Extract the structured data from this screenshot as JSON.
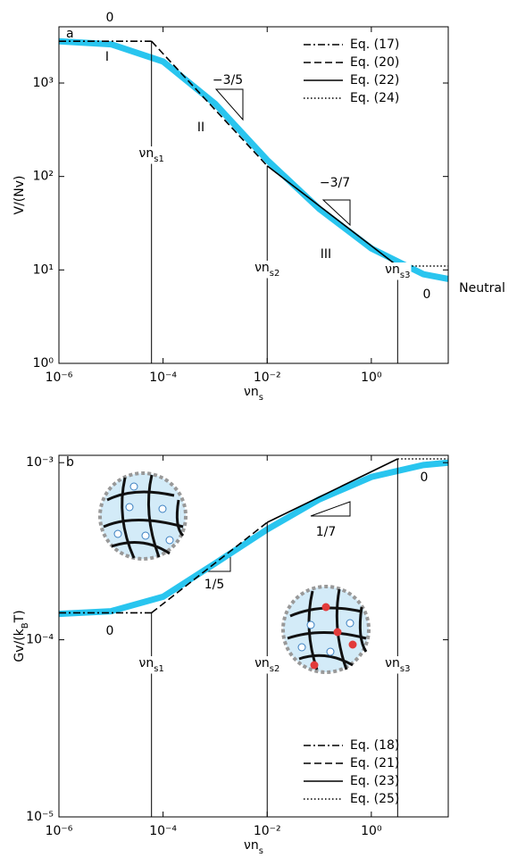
{
  "chart_data": [
    {
      "type": "line",
      "label": "a",
      "xscale": "log",
      "yscale": "log",
      "xlabel": [
        "νn",
        {
          "sub": "s"
        }
      ],
      "ylabel": [
        "V/(Nv)"
      ],
      "xlim": [
        1e-06,
        30
      ],
      "ylim": [
        1,
        4000
      ],
      "xticks": [
        {
          "value": 1e-06,
          "label": "10⁻⁶"
        },
        {
          "value": 0.0001,
          "label": "10⁻⁴"
        },
        {
          "value": 0.01,
          "label": "10⁻²"
        },
        {
          "value": 1,
          "label": "10⁰"
        }
      ],
      "yticks": [
        {
          "value": 1,
          "label": "10⁰"
        },
        {
          "value": 10,
          "label": "10¹"
        },
        {
          "value": 100,
          "label": "10²"
        },
        {
          "value": 1000,
          "label": "10³"
        }
      ],
      "legend": "upper right",
      "series": [
        {
          "color": "#29c5ef",
          "linewidth": 7,
          "linestyle": "solid",
          "x": [
            1e-06,
            1e-05,
            0.0001,
            0.001,
            0.01,
            0.1,
            1,
            10,
            30
          ],
          "values": [
            2800,
            2600,
            1700,
            600,
            150,
            45,
            17,
            9,
            8
          ]
        },
        {
          "name": "Eq. (17)",
          "color": "#000000",
          "linewidth": 1.6,
          "linestyle": "dashdot",
          "x": [
            1e-06,
            6e-05
          ],
          "values": [
            2800,
            2800
          ]
        },
        {
          "name": "Eq. (20)",
          "color": "#000000",
          "linewidth": 1.6,
          "linestyle": "dash",
          "x": [
            6e-05,
            0.01
          ],
          "values": [
            2800,
            130
          ]
        },
        {
          "name": "Eq. (22)",
          "color": "#000000",
          "linewidth": 1.6,
          "linestyle": "solid",
          "x": [
            0.01,
            3.2
          ],
          "values": [
            130,
            11
          ]
        },
        {
          "name": "Eq. (24)",
          "color": "#000000",
          "linewidth": 1.6,
          "linestyle": "dot",
          "x": [
            3.2,
            30
          ],
          "values": [
            11,
            11
          ]
        }
      ],
      "vlines": [
        {
          "x": 6e-05,
          "label": [
            "νn",
            {
              "sub": "s1"
            }
          ]
        },
        {
          "x": 0.01,
          "label": [
            "νn",
            {
              "sub": "s2"
            }
          ]
        },
        {
          "x": 3.2,
          "label": [
            "νn",
            {
              "sub": "s3"
            }
          ]
        }
      ],
      "annotations": [
        "0",
        "I",
        "II",
        "−3/5",
        "III",
        "−3/7",
        "0",
        "Neutral"
      ]
    },
    {
      "type": "line",
      "label": "b",
      "xscale": "log",
      "yscale": "log",
      "xlabel": [
        "νn",
        {
          "sub": "s"
        }
      ],
      "ylabel": [
        "Gv/(k",
        {
          "sub": "B"
        },
        "T)"
      ],
      "xlim": [
        1e-06,
        30
      ],
      "ylim": [
        1e-05,
        0.0011
      ],
      "xticks": [
        {
          "value": 1e-06,
          "label": "10⁻⁶"
        },
        {
          "value": 0.0001,
          "label": "10⁻⁴"
        },
        {
          "value": 0.01,
          "label": "10⁻²"
        },
        {
          "value": 1,
          "label": "10⁰"
        }
      ],
      "yticks": [
        {
          "value": 1e-05,
          "label": "10⁻⁵"
        },
        {
          "value": 0.0001,
          "label": "10⁻⁴"
        },
        {
          "value": 0.001,
          "label": "10⁻³"
        }
      ],
      "legend": "lower right",
      "series": [
        {
          "color": "#29c5ef",
          "linewidth": 7,
          "linestyle": "solid",
          "x": [
            1e-06,
            1e-05,
            0.0001,
            0.001,
            0.01,
            0.1,
            1,
            10,
            30
          ],
          "values": [
            0.00014,
            0.000145,
            0.000175,
            0.00027,
            0.00042,
            0.00062,
            0.00083,
            0.00097,
            0.001
          ]
        },
        {
          "name": "Eq. (18)",
          "color": "#000000",
          "linewidth": 1.6,
          "linestyle": "dashdot",
          "x": [
            1e-06,
            6e-05
          ],
          "values": [
            0.000142,
            0.000142
          ]
        },
        {
          "name": "Eq. (21)",
          "color": "#000000",
          "linewidth": 1.6,
          "linestyle": "dash",
          "x": [
            6e-05,
            0.01
          ],
          "values": [
            0.000142,
            0.00046
          ]
        },
        {
          "name": "Eq. (23)",
          "color": "#000000",
          "linewidth": 1.6,
          "linestyle": "solid",
          "x": [
            0.01,
            3.2
          ],
          "values": [
            0.00046,
            0.00105
          ]
        },
        {
          "name": "Eq. (25)",
          "color": "#000000",
          "linewidth": 1.6,
          "linestyle": "dot",
          "x": [
            3.2,
            30
          ],
          "values": [
            0.00105,
            0.00105
          ]
        }
      ],
      "vlines": [
        {
          "x": 6e-05,
          "label": [
            "νn",
            {
              "sub": "s1"
            }
          ]
        },
        {
          "x": 0.01,
          "label": [
            "νn",
            {
              "sub": "s2"
            }
          ]
        },
        {
          "x": 3.2,
          "label": [
            "νn",
            {
              "sub": "s3"
            }
          ]
        }
      ],
      "annotations": [
        "0",
        "1/5",
        "1/7",
        "0"
      ]
    }
  ]
}
